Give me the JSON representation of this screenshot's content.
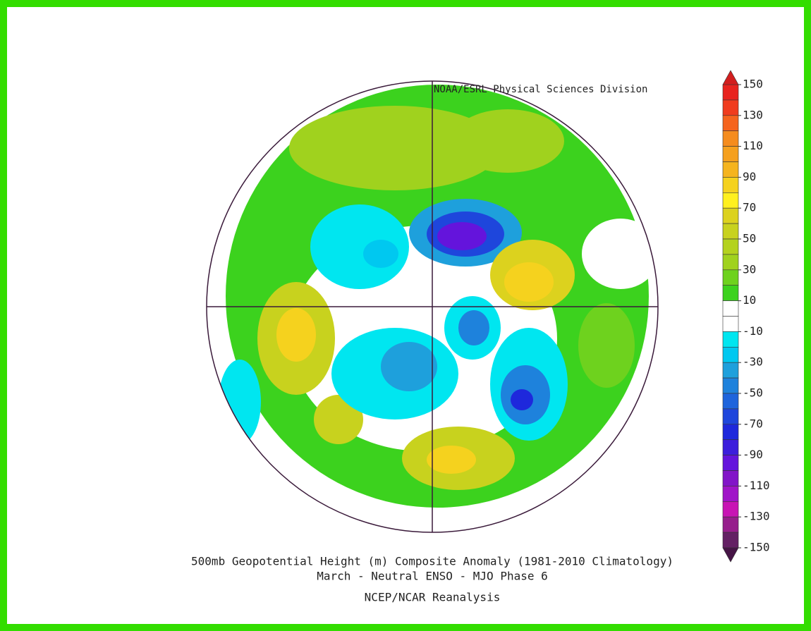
{
  "credit": "NOAA/ESRL Physical Sciences Division",
  "title": [
    "500mb Geopotential Height (m) Composite Anomaly (1981-2010 Climatology)",
    "March - Neutral ENSO - MJO Phase 6"
  ],
  "source": "NCEP/NCAR Reanalysis",
  "colorbar": {
    "ticks": [
      150,
      130,
      110,
      90,
      70,
      50,
      30,
      10,
      -10,
      -30,
      -50,
      -70,
      -90,
      -110,
      -130,
      -150
    ],
    "colors": [
      "#e8231e",
      "#f03c1e",
      "#f5641e",
      "#f58c1e",
      "#f5a01e",
      "#f5b41e",
      "#f5d21e",
      "#fff01e",
      "#dcd21e",
      "#c8d21e",
      "#b4d21e",
      "#a0d21e",
      "#6ed21e",
      "#3cd21e",
      "#ffffff",
      "#ffffff",
      "#00e6f0",
      "#00c8f0",
      "#1ea0dc",
      "#1e82dc",
      "#1e64dc",
      "#1e46dc",
      "#1e28dc",
      "#3c1edc",
      "#6414dc",
      "#8214c8",
      "#a014c8",
      "#c814b4",
      "#961e8c",
      "#642064"
    ],
    "over_color": "#d21e1e",
    "under_color": "#461446"
  }
}
